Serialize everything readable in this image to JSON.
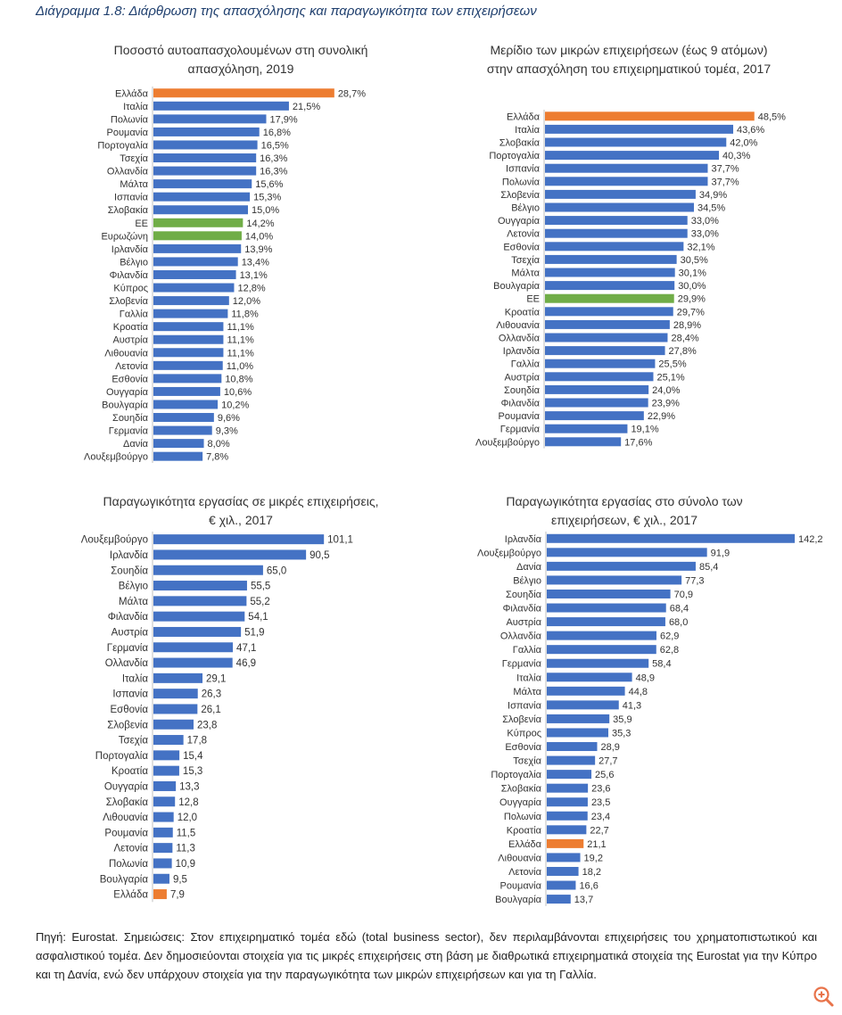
{
  "figure": {
    "title": "Διάγραμμα 1.8: Διάρθρωση της απασχόλησης και παραγωγικότητα των επιχειρήσεων"
  },
  "colors": {
    "bar": "#4472C4",
    "greece": "#ED7D31",
    "eu": "#70AD47"
  },
  "chart_data": [
    {
      "type": "bar",
      "orientation": "horizontal",
      "title": "Ποσοστό αυτοαπασχολουμένων στη συνολική απασχόληση, 2019",
      "value_format": "percent_comma_1",
      "categories": [
        "Ελλάδα",
        "Ιταλία",
        "Πολωνία",
        "Ρουμανία",
        "Πορτογαλία",
        "Τσεχία",
        "Ολλανδία",
        "Μάλτα",
        "Ισπανία",
        "Σλοβακία",
        "ΕΕ",
        "Ευρωζώνη",
        "Ιρλανδία",
        "Βέλγιο",
        "Φιλανδία",
        "Κύπρος",
        "Σλοβενία",
        "Γαλλία",
        "Κροατία",
        "Αυστρία",
        "Λιθουανία",
        "Λετονία",
        "Εσθονία",
        "Ουγγαρία",
        "Βουλγαρία",
        "Σουηδία",
        "Γερμανία",
        "Δανία",
        "Λουξεμβούργο"
      ],
      "values": [
        28.7,
        21.5,
        17.9,
        16.8,
        16.5,
        16.3,
        16.3,
        15.6,
        15.3,
        15.0,
        14.2,
        14.0,
        13.9,
        13.4,
        13.1,
        12.8,
        12.0,
        11.8,
        11.1,
        11.1,
        11.1,
        11.0,
        10.8,
        10.6,
        10.2,
        9.6,
        9.3,
        8.0,
        7.8
      ],
      "value_labels": [
        "28,7%",
        "21,5%",
        "17,9%",
        "16,8%",
        "16,5%",
        "16,3%",
        "16,3%",
        "15,6%",
        "15,3%",
        "15,0%",
        "14,2%",
        "14,0%",
        "13,9%",
        "13,4%",
        "13,1%",
        "12,8%",
        "12,0%",
        "11,8%",
        "11,1%",
        "11,1%",
        "11,1%",
        "11,0%",
        "10,8%",
        "10,6%",
        "10,2%",
        "9,6%",
        "9,3%",
        "8,0%",
        "7,8%"
      ],
      "highlights": {
        "Ελλάδα": "#ED7D31",
        "ΕΕ": "#70AD47",
        "Ευρωζώνη": "#70AD47"
      },
      "xlim": [
        0,
        30
      ]
    },
    {
      "type": "bar",
      "orientation": "horizontal",
      "title": "Μερίδιο των μικρών επιχειρήσεων (έως 9 ατόμων) στην απασχόληση του επιχειρηματικού τομέα, 2017",
      "categories": [
        "Ελλάδα",
        "Ιταλία",
        "Σλοβακία",
        "Πορτογαλία",
        "Ισπανία",
        "Πολωνία",
        "Σλοβενία",
        "Βέλγιο",
        "Ουγγαρία",
        "Λετονία",
        "Εσθονία",
        "Τσεχία",
        "Μάλτα",
        "Βουλγαρία",
        "ΕΕ",
        "Κροατία",
        "Λιθουανία",
        "Ολλανδία",
        "Ιρλανδία",
        "Γαλλία",
        "Αυστρία",
        "Σουηδία",
        "Φιλανδία",
        "Ρουμανία",
        "Γερμανία",
        "Λουξεμβούργο"
      ],
      "values": [
        48.5,
        43.6,
        42.0,
        40.3,
        37.7,
        37.7,
        34.9,
        34.5,
        33.0,
        33.0,
        32.1,
        30.5,
        30.1,
        30.0,
        29.9,
        29.7,
        28.9,
        28.4,
        27.8,
        25.5,
        25.1,
        24.0,
        23.9,
        22.9,
        19.1,
        17.6
      ],
      "value_labels": [
        "48,5%",
        "43,6%",
        "42,0%",
        "40,3%",
        "37,7%",
        "37,7%",
        "34,9%",
        "34,5%",
        "33,0%",
        "33,0%",
        "32,1%",
        "30,5%",
        "30,1%",
        "30,0%",
        "29,9%",
        "29,7%",
        "28,9%",
        "28,4%",
        "27,8%",
        "25,5%",
        "25,1%",
        "24,0%",
        "23,9%",
        "22,9%",
        "19,1%",
        "17,6%"
      ],
      "highlights": {
        "Ελλάδα": "#ED7D31",
        "ΕΕ": "#70AD47"
      },
      "xlim": [
        0,
        50
      ]
    },
    {
      "type": "bar",
      "orientation": "horizontal",
      "title": "Παραγωγικότητα εργασίας σε μικρές επιχειρήσεις, € χιλ., 2017",
      "categories": [
        "Λουξεμβούργο",
        "Ιρλανδία",
        "Σουηδία",
        "Βέλγιο",
        "Μάλτα",
        "Φιλανδία",
        "Αυστρία",
        "Γερμανία",
        "Ολλανδία",
        "Ιταλία",
        "Ισπανία",
        "Εσθονία",
        "Σλοβενία",
        "Τσεχία",
        "Πορτογαλία",
        "Κροατία",
        "Ουγγαρία",
        "Σλοβακία",
        "Λιθουανία",
        "Ρουμανία",
        "Λετονία",
        "Πολωνία",
        "Βουλγαρία",
        "Ελλάδα"
      ],
      "values": [
        101.1,
        90.5,
        65.0,
        55.5,
        55.2,
        54.1,
        51.9,
        47.1,
        46.9,
        29.1,
        26.3,
        26.1,
        23.8,
        17.8,
        15.4,
        15.3,
        13.3,
        12.8,
        12.0,
        11.5,
        11.3,
        10.9,
        9.5,
        7.9
      ],
      "value_labels": [
        "101,1",
        "90,5",
        "65,0",
        "55,5",
        "55,2",
        "54,1",
        "51,9",
        "47,1",
        "46,9",
        "29,1",
        "26,3",
        "26,1",
        "23,8",
        "17,8",
        "15,4",
        "15,3",
        "13,3",
        "12,8",
        "12,0",
        "11,5",
        "11,3",
        "10,9",
        "9,5",
        "7,9"
      ],
      "highlights": {
        "Ελλάδα": "#ED7D31"
      },
      "xlim": [
        0,
        110
      ]
    },
    {
      "type": "bar",
      "orientation": "horizontal",
      "title": "Παραγωγικότητα εργασίας στο σύνολο των επιχειρήσεων, € χιλ., 2017",
      "categories": [
        "Ιρλανδία",
        "Λουξεμβούργο",
        "Δανία",
        "Βέλγιο",
        "Σουηδία",
        "Φιλανδία",
        "Αυστρία",
        "Ολλανδία",
        "Γαλλία",
        "Γερμανία",
        "Ιταλία",
        "Μάλτα",
        "Ισπανία",
        "Σλοβενία",
        "Κύπρος",
        "Εσθονία",
        "Τσεχία",
        "Πορτογαλία",
        "Σλοβακία",
        "Ουγγαρία",
        "Πολωνία",
        "Κροατία",
        "Ελλάδα",
        "Λιθουανία",
        "Λετονία",
        "Ρουμανία",
        "Βουλγαρία"
      ],
      "values": [
        142.2,
        91.9,
        85.4,
        77.3,
        70.9,
        68.4,
        68.0,
        62.9,
        62.8,
        58.4,
        48.9,
        44.8,
        41.3,
        35.9,
        35.3,
        28.9,
        27.7,
        25.6,
        23.6,
        23.5,
        23.4,
        22.7,
        21.1,
        19.2,
        18.2,
        16.6,
        13.7
      ],
      "value_labels": [
        "142,2",
        "91,9",
        "85,4",
        "77,3",
        "70,9",
        "68,4",
        "68,0",
        "62,9",
        "62,8",
        "58,4",
        "48,9",
        "44,8",
        "41,3",
        "35,9",
        "35,3",
        "28,9",
        "27,7",
        "25,6",
        "23,6",
        "23,5",
        "23,4",
        "22,7",
        "21,1",
        "19,2",
        "18,2",
        "16,6",
        "13,7"
      ],
      "highlights": {
        "Ελλάδα": "#ED7D31"
      },
      "xlim": [
        0,
        142.2
      ]
    }
  ],
  "note": "Πηγή: Eurostat. Σημειώσεις: Στον επιχειρηματικό τομέα εδώ (total business sector), δεν περιλαμβάνονται επιχειρήσεις του χρηματοπιστωτικού και ασφαλιστικού τομέα. Δεν δημοσιεύονται στοιχεία για τις μικρές επιχειρήσεις στη βάση με διαθρωτικά επιχειρηματικά στοιχεία της Eurostat για την Κύπρο και τη Δανία, ενώ δεν υπάρχουν στοιχεία για την παραγωγικότητα των μικρών επιχειρήσεων και για τη Γαλλία.",
  "zoom_icon": "zoom-in-icon"
}
